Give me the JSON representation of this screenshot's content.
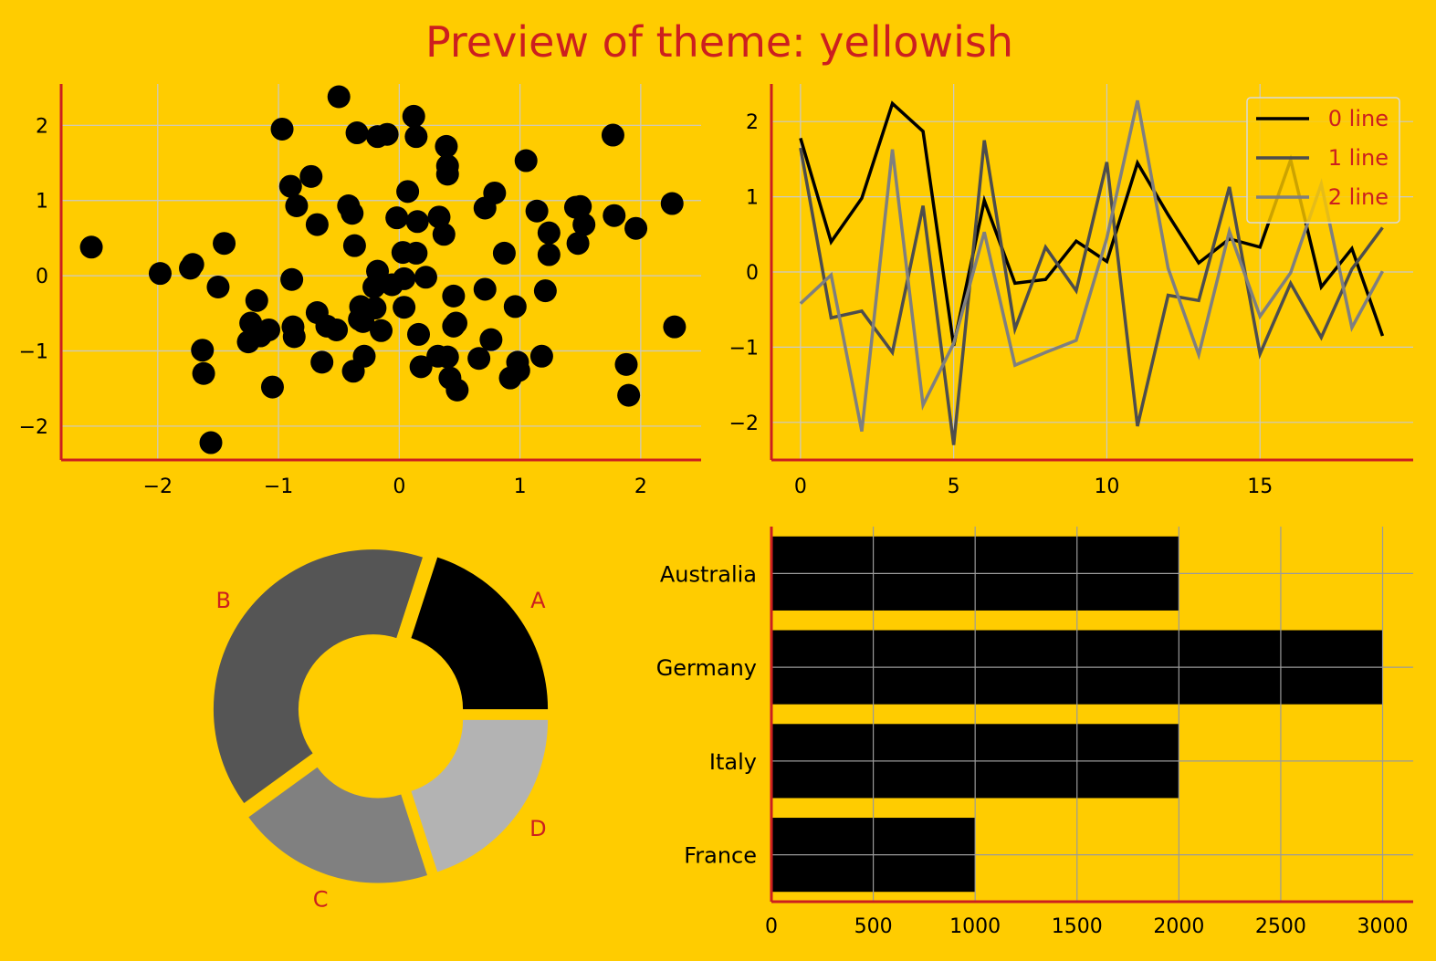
{
  "page": {
    "title": "Preview of theme: yellowish"
  },
  "colors": {
    "background": "#ffcc00",
    "accent": "#cc1f1f",
    "grid": "#c9c9c9",
    "series": [
      "#000000",
      "#4d4d4d",
      "#7f7f7f"
    ],
    "pie": [
      "#000000",
      "#555555",
      "#808080",
      "#b3b3b3"
    ]
  },
  "chart_data": [
    {
      "type": "scatter",
      "xlim": [
        -2.8,
        2.5
      ],
      "ylim": [
        -2.45,
        2.55
      ],
      "xticks": [
        -2,
        -1,
        0,
        1,
        2
      ],
      "yticks": [
        -2,
        -1,
        0,
        1,
        2
      ],
      "grid": true,
      "points": [
        [
          -2.55,
          0.38
        ],
        [
          -1.98,
          0.03
        ],
        [
          -1.73,
          0.1
        ],
        [
          -1.71,
          0.15
        ],
        [
          -1.63,
          -0.99
        ],
        [
          -1.62,
          -1.3
        ],
        [
          -1.56,
          -2.22
        ],
        [
          -1.5,
          -0.15
        ],
        [
          -1.45,
          0.43
        ],
        [
          -1.18,
          -0.33
        ],
        [
          -1.23,
          -0.63
        ],
        [
          -1.25,
          -0.88
        ],
        [
          -1.15,
          -0.8
        ],
        [
          -1.08,
          -0.72
        ],
        [
          -1.05,
          -1.48
        ],
        [
          -0.97,
          1.95
        ],
        [
          -0.9,
          1.19
        ],
        [
          -0.85,
          0.93
        ],
        [
          -0.89,
          -0.05
        ],
        [
          -0.88,
          -0.68
        ],
        [
          -0.87,
          -0.81
        ],
        [
          -0.73,
          1.32
        ],
        [
          -0.68,
          0.68
        ],
        [
          -0.68,
          -0.49
        ],
        [
          -0.64,
          -1.15
        ],
        [
          -0.6,
          -0.67
        ],
        [
          -0.52,
          -0.72
        ],
        [
          -0.5,
          2.38
        ],
        [
          -0.42,
          0.93
        ],
        [
          -0.39,
          0.83
        ],
        [
          -0.38,
          -1.27
        ],
        [
          -0.37,
          0.4
        ],
        [
          -0.35,
          1.9
        ],
        [
          -0.32,
          -0.41
        ],
        [
          -0.33,
          -0.58
        ],
        [
          -0.3,
          -0.61
        ],
        [
          -0.29,
          -1.07
        ],
        [
          -0.21,
          -0.15
        ],
        [
          -0.2,
          -0.43
        ],
        [
          -0.18,
          0.06
        ],
        [
          -0.18,
          1.85
        ],
        [
          -0.15,
          -0.73
        ],
        [
          -0.1,
          1.88
        ],
        [
          -0.06,
          -0.12
        ],
        [
          -0.02,
          0.77
        ],
        [
          0.03,
          0.31
        ],
        [
          0.04,
          -0.04
        ],
        [
          0.04,
          -0.42
        ],
        [
          0.07,
          1.12
        ],
        [
          0.12,
          2.12
        ],
        [
          0.14,
          0.3
        ],
        [
          0.14,
          1.85
        ],
        [
          0.15,
          0.72
        ],
        [
          0.16,
          -0.78
        ],
        [
          0.18,
          -1.21
        ],
        [
          0.22,
          -0.02
        ],
        [
          0.32,
          -1.07
        ],
        [
          0.33,
          0.78
        ],
        [
          0.37,
          0.55
        ],
        [
          0.39,
          1.72
        ],
        [
          0.4,
          1.46
        ],
        [
          0.4,
          1.35
        ],
        [
          0.4,
          -1.08
        ],
        [
          0.42,
          -1.36
        ],
        [
          0.45,
          -0.67
        ],
        [
          0.45,
          -0.27
        ],
        [
          0.47,
          -0.63
        ],
        [
          0.48,
          -1.52
        ],
        [
          0.66,
          -1.1
        ],
        [
          0.71,
          0.9
        ],
        [
          0.71,
          -0.18
        ],
        [
          0.76,
          -0.85
        ],
        [
          0.79,
          1.1
        ],
        [
          0.87,
          0.3
        ],
        [
          0.92,
          -1.36
        ],
        [
          0.96,
          -0.41
        ],
        [
          0.98,
          -1.15
        ],
        [
          0.99,
          -1.26
        ],
        [
          1.05,
          1.53
        ],
        [
          1.14,
          0.86
        ],
        [
          1.18,
          -1.07
        ],
        [
          1.21,
          -0.2
        ],
        [
          1.24,
          0.57
        ],
        [
          1.24,
          0.28
        ],
        [
          1.46,
          0.91
        ],
        [
          1.48,
          0.43
        ],
        [
          1.5,
          0.92
        ],
        [
          1.53,
          0.68
        ],
        [
          1.78,
          0.8
        ],
        [
          1.77,
          1.87
        ],
        [
          1.88,
          -1.18
        ],
        [
          1.9,
          -1.59
        ],
        [
          1.96,
          0.63
        ],
        [
          2.26,
          0.96
        ],
        [
          2.28,
          -0.68
        ]
      ]
    },
    {
      "type": "line",
      "xlim": [
        -0.95,
        20.0
      ],
      "ylim": [
        -2.5,
        2.5
      ],
      "xticks": [
        0,
        5,
        10,
        15
      ],
      "yticks": [
        -2,
        -1,
        0,
        1,
        2
      ],
      "grid": true,
      "legend": "top-right",
      "x": [
        0,
        1,
        2,
        3,
        4,
        5,
        6,
        7,
        8,
        9,
        10,
        11,
        12,
        13,
        14,
        15,
        16,
        17,
        18,
        19
      ],
      "series": [
        {
          "name": "0 line",
          "values": [
            1.78,
            0.4,
            0.98,
            2.24,
            1.87,
            -0.98,
            0.95,
            -0.15,
            -0.1,
            0.41,
            0.14,
            1.45,
            0.76,
            0.12,
            0.44,
            0.33,
            1.49,
            -0.2,
            0.31,
            -0.85
          ]
        },
        {
          "name": "1 line",
          "values": [
            1.65,
            -0.61,
            -0.52,
            -1.07,
            0.88,
            -2.3,
            1.75,
            -0.76,
            0.33,
            -0.25,
            1.46,
            -2.05,
            -0.31,
            -0.38,
            1.13,
            -1.09,
            -0.15,
            -0.87,
            0.04,
            0.59
          ]
        },
        {
          "name": "2 line",
          "values": [
            -0.42,
            -0.04,
            -2.12,
            1.63,
            -1.77,
            -0.95,
            0.53,
            -1.24,
            -1.07,
            -0.91,
            0.45,
            2.28,
            0.05,
            -1.1,
            0.54,
            -0.59,
            -0.01,
            1.17,
            -0.74,
            0.01
          ]
        }
      ]
    },
    {
      "type": "pie",
      "donut": true,
      "categories": [
        "A",
        "B",
        "C",
        "D"
      ],
      "values": [
        20,
        40,
        20,
        20
      ]
    },
    {
      "type": "bar",
      "orientation": "horizontal",
      "categories": [
        "France",
        "Italy",
        "Germany",
        "Australia"
      ],
      "values": [
        1000,
        2000,
        3000,
        2000
      ],
      "xlim": [
        0,
        3150
      ],
      "xticks": [
        0,
        500,
        1000,
        1500,
        2000,
        2500,
        3000
      ],
      "grid": true
    }
  ]
}
